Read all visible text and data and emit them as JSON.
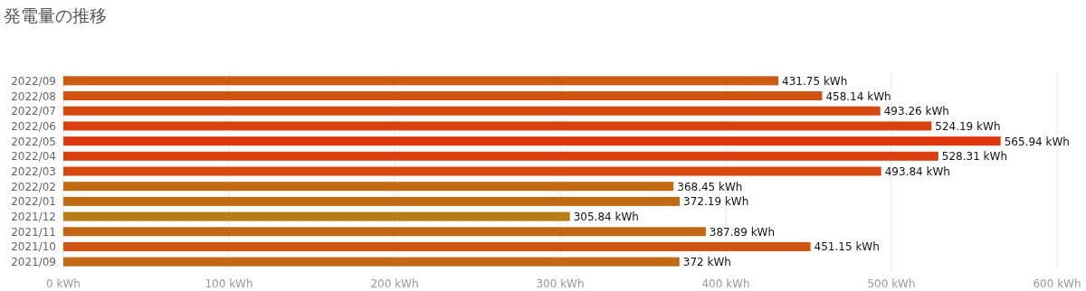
{
  "chart_data": {
    "type": "bar",
    "orientation": "horizontal",
    "title": "発電量の推移",
    "categories": [
      "2022/09",
      "2022/08",
      "2022/07",
      "2022/06",
      "2022/05",
      "2022/04",
      "2022/03",
      "2022/02",
      "2022/01",
      "2021/12",
      "2021/11",
      "2021/10",
      "2021/09"
    ],
    "values": [
      431.75,
      458.14,
      493.26,
      524.19,
      565.94,
      528.31,
      493.84,
      368.45,
      372.19,
      305.84,
      387.89,
      451.15,
      372
    ],
    "value_labels": [
      "431.75 kWh",
      "458.14 kWh",
      "493.26 kWh",
      "524.19 kWh",
      "565.94 kWh",
      "528.31 kWh",
      "493.84 kWh",
      "368.45 kWh",
      "372.19 kWh",
      "305.84 kWh",
      "387.89 kWh",
      "451.15 kWh",
      "372 kWh"
    ],
    "colors": [
      "#cc5a11",
      "#d05311",
      "#d54910",
      "#da410f",
      "#e0360e",
      "#da400f",
      "#d54910",
      "#c36a13",
      "#c36913",
      "#b97b14",
      "#c66512",
      "#cf5411",
      "#c36913"
    ],
    "xlim": [
      0,
      600
    ],
    "xticks": [
      {
        "value": 0,
        "label": "0 kWh"
      },
      {
        "value": 100,
        "label": "100 kWh"
      },
      {
        "value": 200,
        "label": "200 kWh"
      },
      {
        "value": 300,
        "label": "300 kWh"
      },
      {
        "value": 400,
        "label": "400 kWh"
      },
      {
        "value": 500,
        "label": "500 kWh"
      },
      {
        "value": 600,
        "label": "600 kWh"
      }
    ],
    "grid": "x"
  }
}
